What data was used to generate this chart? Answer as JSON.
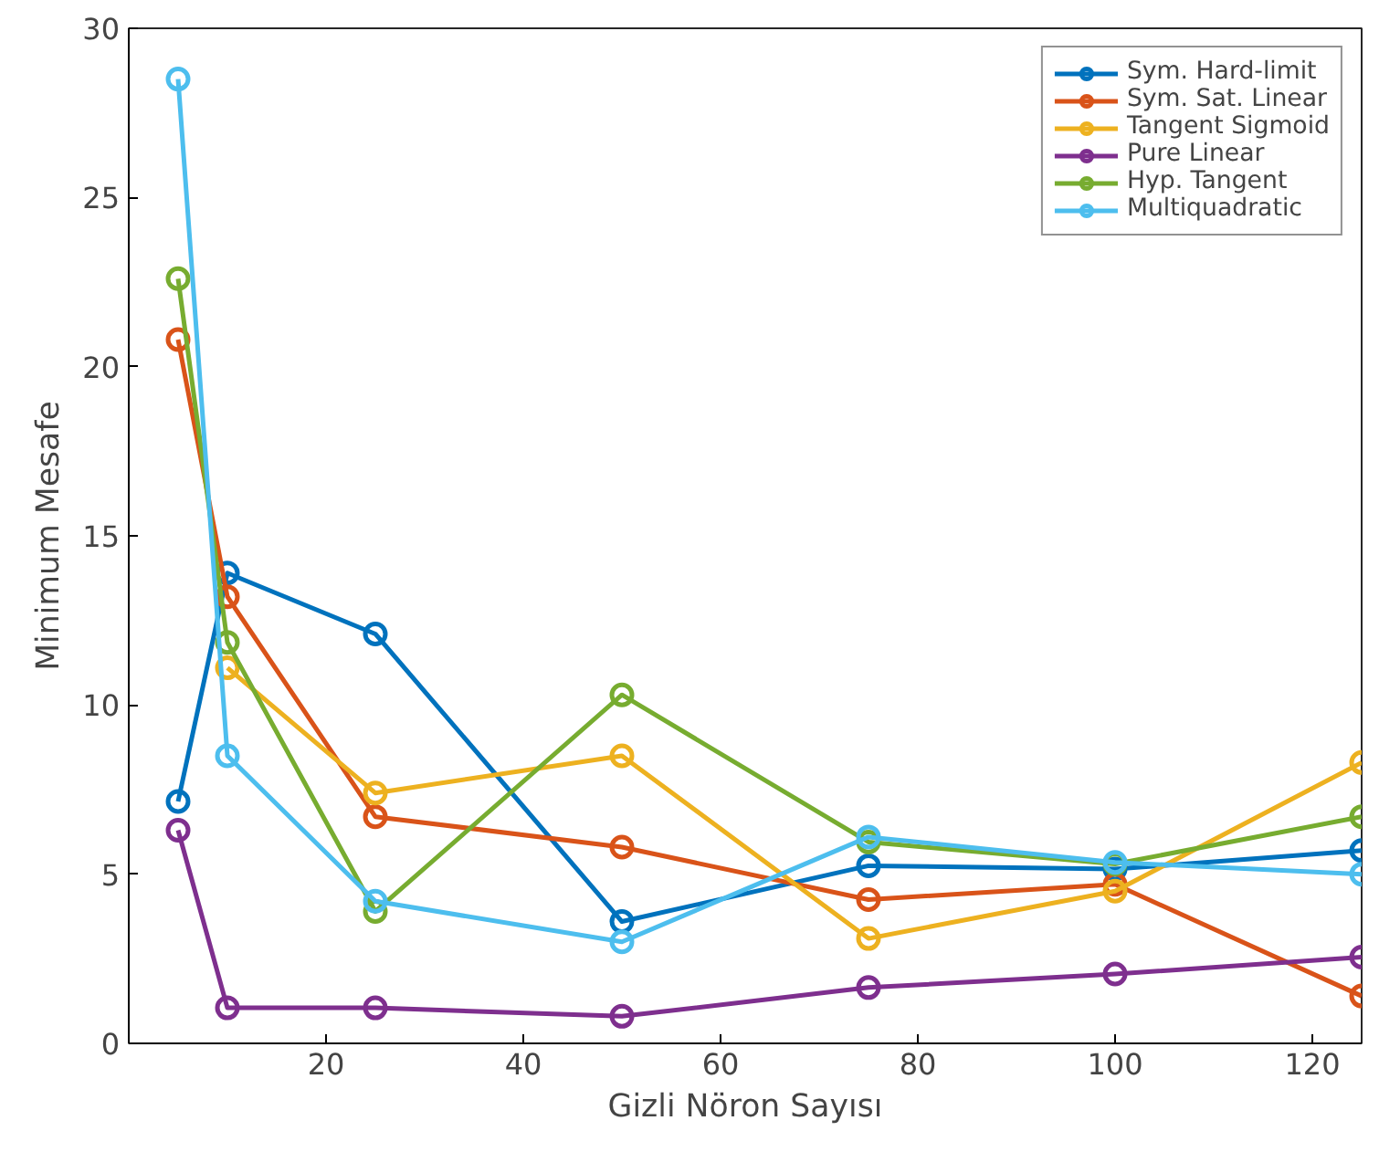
{
  "chart_data": {
    "type": "line",
    "xlabel": "Gizli Nöron Sayısı",
    "ylabel": "Minimum Mesafe",
    "x": [
      5,
      10,
      25,
      50,
      75,
      100,
      125
    ],
    "xlim": [
      0,
      125
    ],
    "xticks": [
      20,
      40,
      60,
      80,
      100,
      120
    ],
    "ylim": [
      0,
      30
    ],
    "yticks": [
      0,
      5,
      10,
      15,
      20,
      25,
      30
    ],
    "grid": false,
    "legend": "top right",
    "marker": "circle",
    "line_style": "solid",
    "series": [
      {
        "name": "Sym. Hard-limit",
        "color": "#0072bd",
        "values": [
          7.15,
          13.9,
          12.1,
          3.6,
          5.25,
          5.15,
          5.7
        ]
      },
      {
        "name": "Sym. Sat. Linear",
        "color": "#d95319",
        "values": [
          20.8,
          13.2,
          6.7,
          5.8,
          4.25,
          4.7,
          1.4
        ]
      },
      {
        "name": "Tangent Sigmoid",
        "color": "#edb120",
        "values": [
          null,
          11.1,
          7.4,
          8.5,
          3.1,
          4.5,
          8.3
        ]
      },
      {
        "name": "Pure Linear",
        "color": "#7e2f8e",
        "values": [
          6.3,
          1.05,
          1.05,
          0.8,
          1.65,
          2.05,
          2.55
        ]
      },
      {
        "name": "Hyp. Tangent",
        "color": "#77ac30",
        "values": [
          22.6,
          11.85,
          3.9,
          10.3,
          5.95,
          5.3,
          6.7
        ]
      },
      {
        "name": "Multiquadratic",
        "color": "#4dbeee",
        "values": [
          28.5,
          8.5,
          4.2,
          3.0,
          6.1,
          5.35,
          5.0
        ]
      }
    ]
  }
}
